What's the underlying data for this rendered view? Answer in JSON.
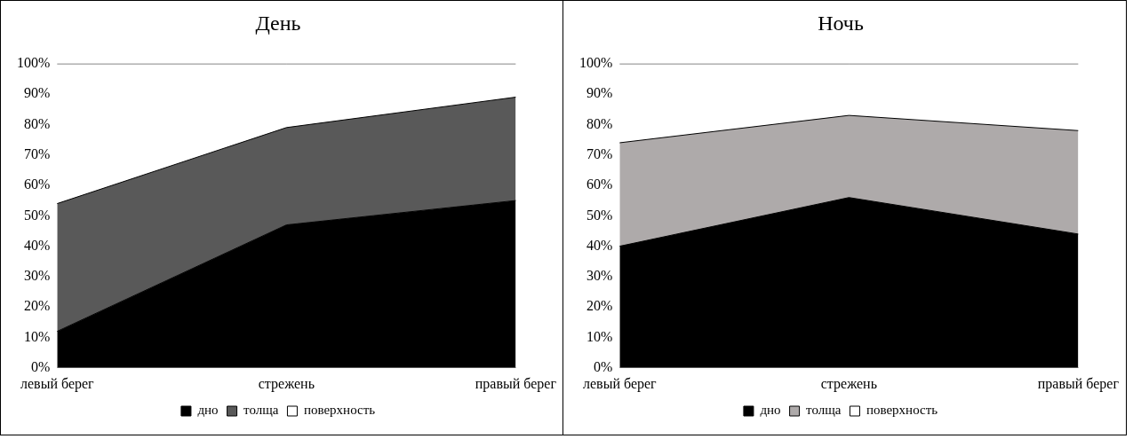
{
  "chart_data": [
    {
      "type": "area",
      "title": "День",
      "categories": [
        "левый берег",
        "стрежень",
        "правый берег"
      ],
      "stacked": true,
      "ylim": [
        0,
        100
      ],
      "yticks": [
        {
          "value": 0,
          "label": "0%"
        },
        {
          "value": 10,
          "label": "10%"
        },
        {
          "value": 20,
          "label": "20%"
        },
        {
          "value": 30,
          "label": "30%"
        },
        {
          "value": 40,
          "label": "40%"
        },
        {
          "value": 50,
          "label": "50%"
        },
        {
          "value": 60,
          "label": "60%"
        },
        {
          "value": 70,
          "label": "70%"
        },
        {
          "value": 80,
          "label": "80%"
        },
        {
          "value": 90,
          "label": "90%"
        },
        {
          "value": 100,
          "label": "100%"
        }
      ],
      "grid": false,
      "legend": "bottom",
      "series": [
        {
          "name": "дно",
          "color": "#000000",
          "values": [
            12,
            47,
            55
          ]
        },
        {
          "name": "толща",
          "color": "#595959",
          "values": [
            42,
            32,
            34
          ]
        },
        {
          "name": "поверхность",
          "color": "#ffffff",
          "values": [
            46,
            21,
            11
          ]
        }
      ]
    },
    {
      "type": "area",
      "title": "Ночь",
      "categories": [
        "левый берег",
        "стрежень",
        "правый берег"
      ],
      "stacked": true,
      "ylim": [
        0,
        100
      ],
      "yticks": [
        {
          "value": 0,
          "label": "0%"
        },
        {
          "value": 10,
          "label": "10%"
        },
        {
          "value": 20,
          "label": "20%"
        },
        {
          "value": 30,
          "label": "30%"
        },
        {
          "value": 40,
          "label": "40%"
        },
        {
          "value": 50,
          "label": "50%"
        },
        {
          "value": 60,
          "label": "60%"
        },
        {
          "value": 70,
          "label": "70%"
        },
        {
          "value": 80,
          "label": "80%"
        },
        {
          "value": 90,
          "label": "90%"
        },
        {
          "value": 100,
          "label": "100%"
        }
      ],
      "grid": false,
      "legend": "bottom",
      "series": [
        {
          "name": "дно",
          "color": "#000000",
          "values": [
            40,
            56,
            44
          ]
        },
        {
          "name": "толща",
          "color": "#aeaaaa",
          "values": [
            34,
            27,
            34
          ]
        },
        {
          "name": "поверхность",
          "color": "#ffffff",
          "values": [
            26,
            17,
            22
          ]
        }
      ]
    }
  ]
}
